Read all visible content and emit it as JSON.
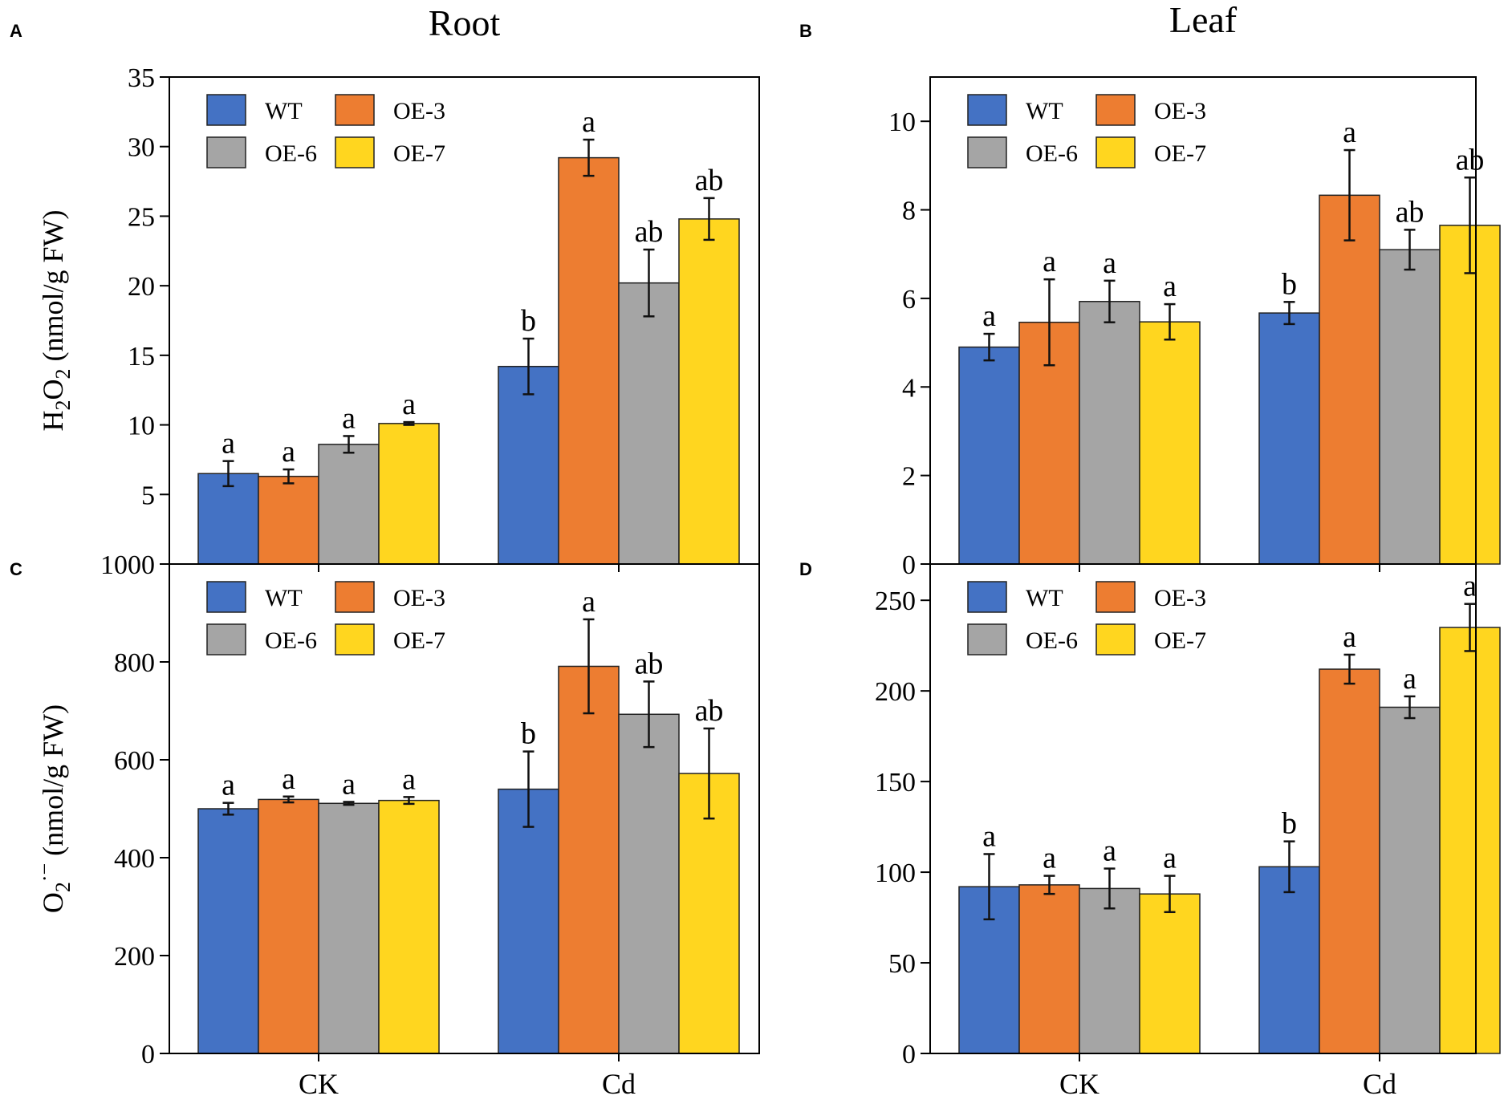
{
  "figure": {
    "column_titles": [
      "Root",
      "Leaf"
    ]
  },
  "chart_data": [
    {
      "panel": "A",
      "type": "bar",
      "title": "Root",
      "categories": [
        "CK",
        "Cd"
      ],
      "ylabel": "H2O2 (nmol/g FW)",
      "ylim": [
        0,
        35
      ],
      "yticks": [
        5,
        10,
        15,
        20,
        25,
        30,
        35
      ],
      "show_xticklabels": false,
      "series": [
        {
          "name": "WT",
          "color": "#4472C4",
          "values": [
            6.5,
            14.2
          ],
          "errors": [
            0.9,
            2.0
          ],
          "labels": [
            "a",
            "b"
          ]
        },
        {
          "name": "OE-3",
          "color": "#ED7D31",
          "values": [
            6.3,
            29.2
          ],
          "errors": [
            0.5,
            1.3
          ],
          "labels": [
            "a",
            "a"
          ]
        },
        {
          "name": "OE-6",
          "color": "#A5A5A5",
          "values": [
            8.6,
            20.2
          ],
          "errors": [
            0.6,
            2.4
          ],
          "labels": [
            "a",
            "ab"
          ]
        },
        {
          "name": "OE-7",
          "color": "#FFD61F",
          "values": [
            10.1,
            24.8
          ],
          "errors": [
            0.1,
            1.5
          ],
          "labels": [
            "a",
            "ab"
          ]
        }
      ]
    },
    {
      "panel": "B",
      "type": "bar",
      "title": "Leaf",
      "categories": [
        "CK",
        "Cd"
      ],
      "ylabel": "",
      "ylim": [
        0,
        11
      ],
      "yticks": [
        0,
        2,
        4,
        6,
        8,
        10
      ],
      "show_xticklabels": false,
      "series": [
        {
          "name": "WT",
          "color": "#4472C4",
          "values": [
            4.9,
            5.67
          ],
          "errors": [
            0.3,
            0.25
          ],
          "labels": [
            "a",
            "b"
          ]
        },
        {
          "name": "OE-3",
          "color": "#ED7D31",
          "values": [
            5.46,
            8.33
          ],
          "errors": [
            0.97,
            1.02
          ],
          "labels": [
            "a",
            "a"
          ]
        },
        {
          "name": "OE-6",
          "color": "#A5A5A5",
          "values": [
            5.93,
            7.1
          ],
          "errors": [
            0.47,
            0.45
          ],
          "labels": [
            "a",
            "ab"
          ]
        },
        {
          "name": "OE-7",
          "color": "#FFD61F",
          "values": [
            5.47,
            7.65
          ],
          "errors": [
            0.4,
            1.08
          ],
          "labels": [
            "a",
            "ab"
          ]
        }
      ]
    },
    {
      "panel": "C",
      "type": "bar",
      "title": "",
      "categories": [
        "CK",
        "Cd"
      ],
      "ylabel": "O2·− (nmol/g FW)",
      "ylim": [
        0,
        1000
      ],
      "yticks": [
        0,
        200,
        400,
        600,
        800,
        1000
      ],
      "show_xticklabels": true,
      "series": [
        {
          "name": "WT",
          "color": "#4472C4",
          "values": [
            500,
            540
          ],
          "errors": [
            12,
            77
          ],
          "labels": [
            "a",
            "b"
          ]
        },
        {
          "name": "OE-3",
          "color": "#ED7D31",
          "values": [
            519,
            791
          ],
          "errors": [
            6,
            96
          ],
          "labels": [
            "a",
            "a"
          ]
        },
        {
          "name": "OE-6",
          "color": "#A5A5A5",
          "values": [
            511,
            693
          ],
          "errors": [
            3,
            67
          ],
          "labels": [
            "a",
            "ab"
          ]
        },
        {
          "name": "OE-7",
          "color": "#FFD61F",
          "values": [
            517,
            572
          ],
          "errors": [
            7,
            92
          ],
          "labels": [
            "a",
            "ab"
          ]
        }
      ]
    },
    {
      "panel": "D",
      "type": "bar",
      "title": "",
      "categories": [
        "CK",
        "Cd"
      ],
      "ylabel": "",
      "ylim": [
        0,
        270
      ],
      "yticks": [
        0,
        50,
        100,
        150,
        200,
        250
      ],
      "show_xticklabels": true,
      "series": [
        {
          "name": "WT",
          "color": "#4472C4",
          "values": [
            92,
            103
          ],
          "errors": [
            18,
            14
          ],
          "labels": [
            "a",
            "b"
          ]
        },
        {
          "name": "OE-3",
          "color": "#ED7D31",
          "values": [
            93,
            212
          ],
          "errors": [
            5,
            8
          ],
          "labels": [
            "a",
            "a"
          ]
        },
        {
          "name": "OE-6",
          "color": "#A5A5A5",
          "values": [
            91,
            191
          ],
          "errors": [
            11,
            6
          ],
          "labels": [
            "a",
            "a"
          ]
        },
        {
          "name": "OE-7",
          "color": "#FFD61F",
          "values": [
            88,
            235
          ],
          "errors": [
            10,
            13
          ],
          "labels": [
            "a",
            "a"
          ]
        }
      ]
    }
  ]
}
